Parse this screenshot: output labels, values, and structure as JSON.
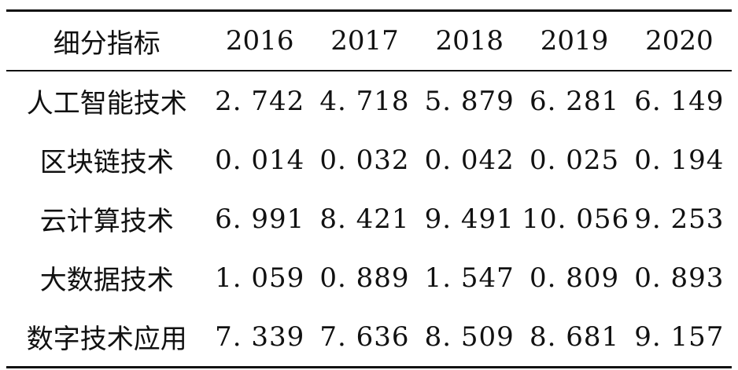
{
  "table": {
    "headers": [
      "细分指标",
      "2016",
      "2017",
      "2018",
      "2019",
      "2020"
    ],
    "rows": [
      {
        "label": "人工智能技术",
        "values": [
          "2. 742",
          "4. 718",
          "5. 879",
          "6. 281",
          "6. 149"
        ]
      },
      {
        "label": "区块链技术",
        "values": [
          "0. 014",
          "0. 032",
          "0. 042",
          "0. 025",
          "0. 194"
        ]
      },
      {
        "label": "云计算技术",
        "values": [
          "6. 991",
          "8. 421",
          "9. 491",
          "10. 056",
          "9. 253"
        ]
      },
      {
        "label": "大数据技术",
        "values": [
          "1. 059",
          "0. 889",
          "1. 547",
          "0. 809",
          "0. 893"
        ]
      },
      {
        "label": "数字技术应用",
        "values": [
          "7. 339",
          "7. 636",
          "8. 509",
          "8. 681",
          "9. 157"
        ]
      }
    ]
  }
}
